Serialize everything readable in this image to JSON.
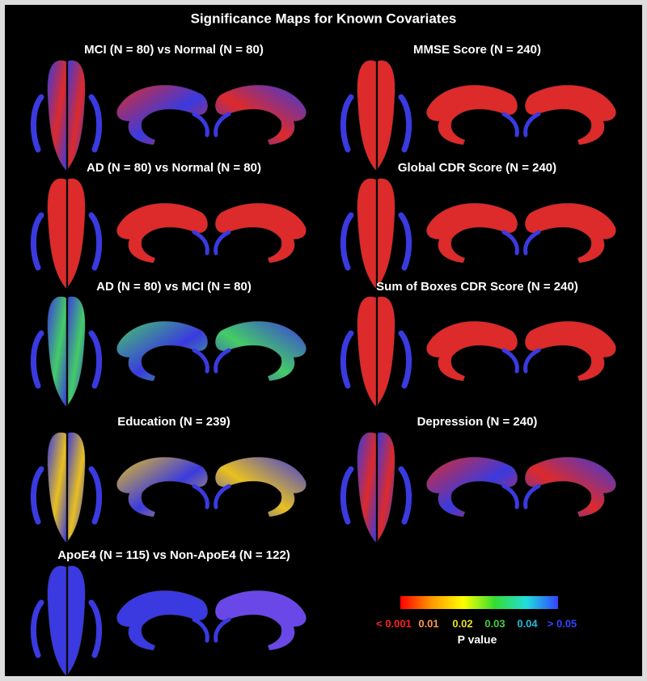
{
  "title": "Significance Maps for Known Covariates",
  "panels": [
    {
      "label": "MCI (N = 80) vs Normal (N = 80)"
    },
    {
      "label": "AD (N = 80) vs Normal (N = 80)"
    },
    {
      "label": "AD (N = 80) vs MCI (N = 80)"
    },
    {
      "label": "Education (N = 239)"
    },
    {
      "label": "ApoE4 (N = 115) vs Non-ApoE4 (N = 122)"
    },
    {
      "label": "MMSE Score (N = 240)"
    },
    {
      "label": "Global CDR Score (N = 240)"
    },
    {
      "label": "Sum of Boxes CDR Score (N = 240)"
    },
    {
      "label": "Depression (N = 240)"
    }
  ],
  "colorbar": {
    "tick_labels": [
      "< 0.001",
      "0.01",
      "0.02",
      "0.03",
      "0.04",
      "> 0.05"
    ],
    "axis_label": "P value"
  }
}
